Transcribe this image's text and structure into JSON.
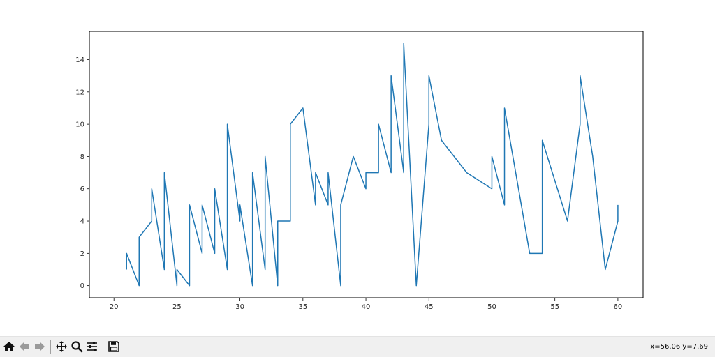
{
  "chart_data": {
    "type": "line",
    "title": "",
    "xlabel": "",
    "ylabel": "",
    "xlim": [
      18.05,
      62.0
    ],
    "ylim": [
      -0.75,
      15.75
    ],
    "xticks": [
      20,
      25,
      30,
      35,
      40,
      45,
      50,
      55,
      60
    ],
    "yticks": [
      0,
      2,
      4,
      6,
      8,
      10,
      12,
      14
    ],
    "grid": false,
    "line_color": "#1f77b4",
    "series": [
      {
        "x": [
          21,
          21,
          22,
          22,
          23,
          23,
          24,
          24,
          25,
          25,
          26,
          26,
          27,
          27,
          28,
          28,
          29,
          29,
          30,
          30,
          31,
          31,
          32,
          32,
          33,
          33,
          34,
          34,
          35,
          36,
          36,
          37,
          37,
          38,
          38,
          39,
          40,
          40,
          41,
          41,
          42,
          42,
          43,
          43,
          44,
          45,
          45,
          46,
          48,
          50,
          50,
          51,
          51,
          53,
          54,
          54,
          56,
          57,
          57,
          58,
          59,
          60,
          60
        ],
        "values": [
          1,
          2,
          0,
          3,
          4,
          6,
          1,
          7,
          0,
          1,
          0,
          5,
          2,
          5,
          2,
          6,
          1,
          10,
          4,
          5,
          0,
          7,
          1,
          8,
          0,
          4,
          4,
          10,
          11,
          5,
          7,
          5,
          7,
          0,
          5,
          8,
          6,
          7,
          7,
          10,
          7,
          13,
          7,
          15,
          0,
          10,
          13,
          9,
          7,
          6,
          8,
          5,
          11,
          2,
          2,
          9,
          4,
          10,
          13,
          8,
          1,
          4,
          5
        ]
      }
    ]
  },
  "toolbar": {
    "buttons": [
      {
        "name": "home-button",
        "icon": "home-icon"
      },
      {
        "name": "back-button",
        "icon": "arrow-left-icon"
      },
      {
        "name": "forward-button",
        "icon": "arrow-right-icon"
      },
      {
        "name": "pan-button",
        "icon": "move-icon"
      },
      {
        "name": "zoom-button",
        "icon": "magnifier-icon"
      },
      {
        "name": "configure-subplots-button",
        "icon": "sliders-icon"
      },
      {
        "name": "save-button",
        "icon": "floppy-disk-icon"
      }
    ],
    "coordinates": "x=56.06 y=7.69"
  }
}
